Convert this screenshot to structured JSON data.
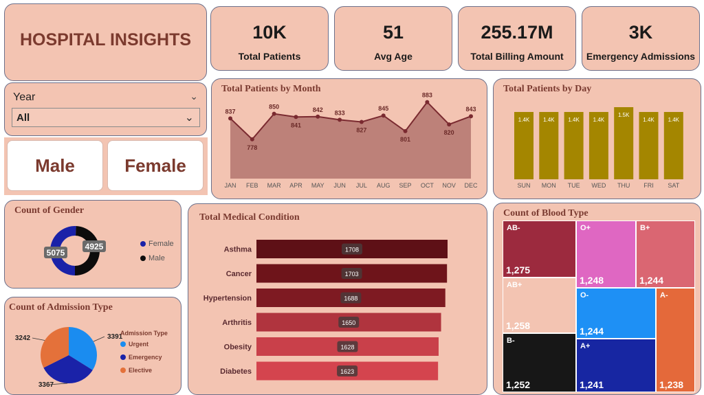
{
  "header": {
    "title": "HOSPITAL INSIGHTS"
  },
  "kpis": [
    {
      "value": "10K",
      "label": "Total Patients"
    },
    {
      "value": "51",
      "label": "Avg Age"
    },
    {
      "value": "255.17M",
      "label": "Total Billing Amount"
    },
    {
      "value": "3K",
      "label": "Emergency Admissions"
    }
  ],
  "slicer": {
    "label": "Year",
    "value": "All"
  },
  "gender_buttons": {
    "male": "Male",
    "female": "Female"
  },
  "colors": {
    "card_bg": "#f3c4b2",
    "title": "#7b3a2e",
    "month_line": "#7a2a30",
    "day_bar": "#a48600"
  },
  "chart_data": [
    {
      "id": "month",
      "type": "area",
      "title": "Total Patients by Month",
      "categories": [
        "JAN",
        "FEB",
        "MAR",
        "APR",
        "MAY",
        "JUN",
        "JUL",
        "AUG",
        "SEP",
        "OCT",
        "NOV",
        "DEC"
      ],
      "values": [
        837,
        778,
        850,
        841,
        842,
        833,
        827,
        845,
        801,
        883,
        820,
        843
      ],
      "ylim": [
        700,
        890
      ]
    },
    {
      "id": "day",
      "type": "bar",
      "title": "Total Patients by Day",
      "categories": [
        "SUN",
        "MON",
        "TUE",
        "WED",
        "THU",
        "FRI",
        "SAT"
      ],
      "values": [
        1400,
        1400,
        1400,
        1400,
        1500,
        1400,
        1400
      ],
      "labels": [
        "1.4K",
        "1.4K",
        "1.4K",
        "1.4K",
        "1.5K",
        "1.4K",
        "1.4K"
      ]
    },
    {
      "id": "gender",
      "type": "pie",
      "title": "Count of Gender",
      "categories": [
        "Female",
        "Male"
      ],
      "values": [
        5075,
        4925
      ],
      "colors": [
        "#1a22a8",
        "#0c0c0c"
      ]
    },
    {
      "id": "admission",
      "type": "pie",
      "title": "Count of Admission Type",
      "legend_title": "Admission Type",
      "categories": [
        "Urgent",
        "Emergency",
        "Elective"
      ],
      "values": [
        3391,
        3367,
        3242
      ],
      "colors": [
        "#1a8cf0",
        "#1a22a8",
        "#e4713a"
      ]
    },
    {
      "id": "condition",
      "type": "bar",
      "title": "Total Medical Condition",
      "categories": [
        "Asthma",
        "Cancer",
        "Hypertension",
        "Arthritis",
        "Obesity",
        "Diabetes"
      ],
      "values": [
        1708,
        1703,
        1688,
        1650,
        1628,
        1623
      ],
      "colors": [
        "#5e1016",
        "#6e141a",
        "#7e1a22",
        "#b0343e",
        "#c9404a",
        "#d4444e"
      ]
    },
    {
      "id": "blood",
      "type": "treemap",
      "title": "Count of Blood Type",
      "categories": [
        "AB-",
        "O+",
        "B+",
        "AB+",
        "O-",
        "A-",
        "B-",
        "A+"
      ],
      "values": [
        1275,
        1248,
        1244,
        1258,
        1244,
        1238,
        1252,
        1241
      ],
      "labels": [
        "1,275",
        "1,248",
        "1,244",
        "1,258",
        "1,244",
        "1,238",
        "1,252",
        "1,241"
      ],
      "colors": [
        "#9c2a3e",
        "#df67c2",
        "#da6672",
        "#f3c4b2",
        "#1e90f5",
        "#e4693a",
        "#171717",
        "#1726a2"
      ]
    }
  ]
}
